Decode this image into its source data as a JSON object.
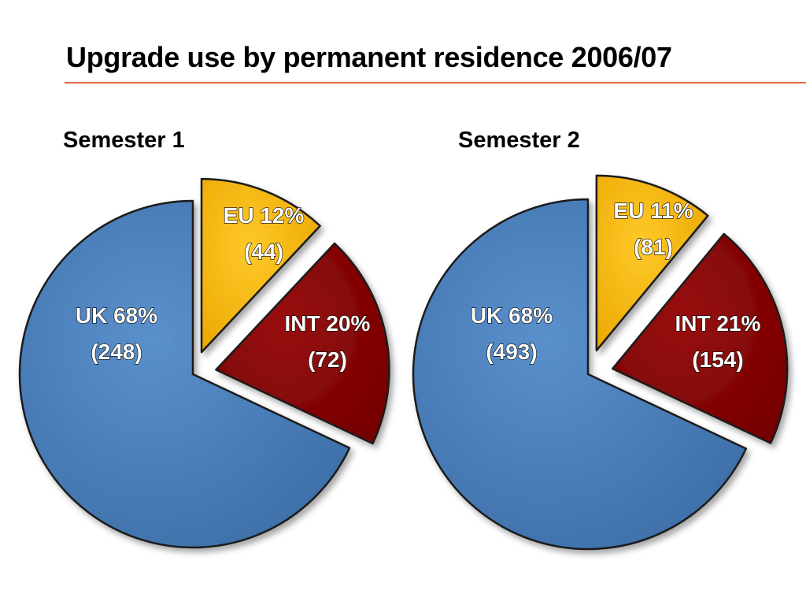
{
  "page": {
    "title": "Upgrade use by permanent residence 2006/07"
  },
  "colors": {
    "uk": "#4a7fbb",
    "eu": "#f5ba00",
    "int": "#880000",
    "title_rule": "#e8683a"
  },
  "chart_data": [
    {
      "type": "pie",
      "title": "Semester 1",
      "slices": [
        {
          "name": "UK",
          "percent": 68,
          "count": 248,
          "line1": "UK 68%",
          "line2": "(248)",
          "exploded": false
        },
        {
          "name": "EU",
          "percent": 12,
          "count": 44,
          "line1": "EU 12%",
          "line2": "(44)",
          "exploded": true
        },
        {
          "name": "INT",
          "percent": 20,
          "count": 72,
          "line1": "INT 20%",
          "line2": "(72)",
          "exploded": true
        }
      ]
    },
    {
      "type": "pie",
      "title": "Semester 2",
      "slices": [
        {
          "name": "UK",
          "percent": 68,
          "count": 493,
          "line1": "UK 68%",
          "line2": "(493)",
          "exploded": false
        },
        {
          "name": "EU",
          "percent": 11,
          "count": 81,
          "line1": "EU 11%",
          "line2": "(81)",
          "exploded": true
        },
        {
          "name": "INT",
          "percent": 21,
          "count": 154,
          "line1": "INT 21%",
          "line2": "(154)",
          "exploded": true
        }
      ]
    }
  ]
}
